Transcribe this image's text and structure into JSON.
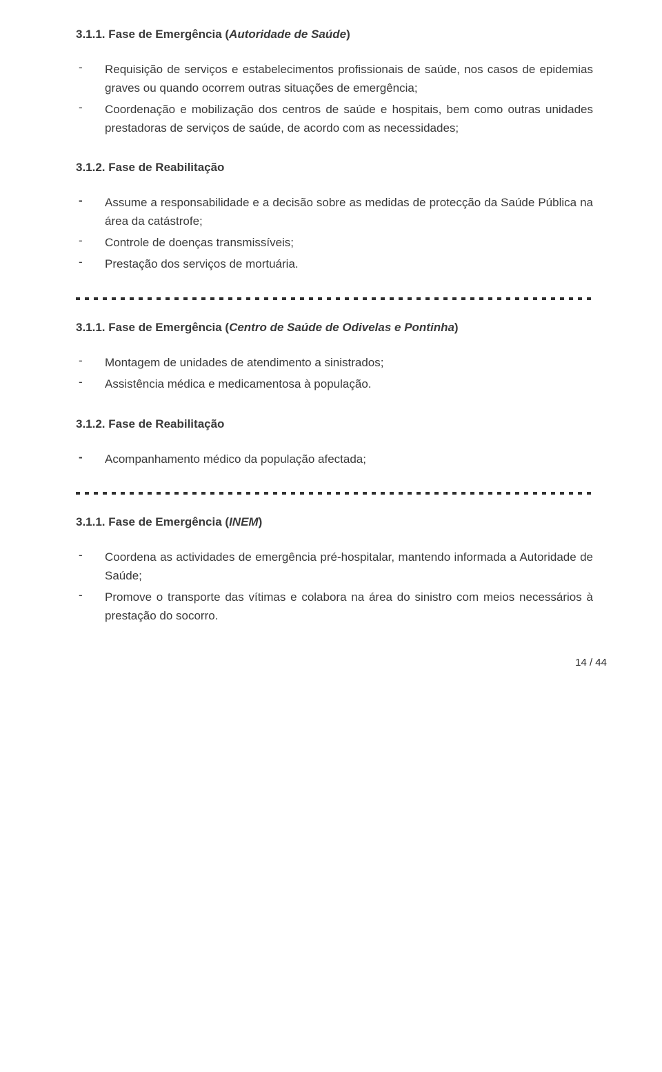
{
  "colors": {
    "text": "#3a3a3a",
    "page_bg": "#ffffff",
    "separator_dash": "#303030"
  },
  "typography": {
    "body_family": "Verdana",
    "body_size_pt": 12,
    "heading_weight": "bold",
    "line_height": 1.58
  },
  "section1": {
    "heading_prefix": "3.1.1. Fase de Emergência (",
    "heading_em": "Autoridade de Saúde",
    "heading_suffix": ")",
    "items": [
      "Requisição de serviços e estabelecimentos profissionais de saúde, nos casos de epidemias graves ou quando ocorrem outras situações de emergência;",
      "Coordenação e mobilização dos centros de saúde e hospitais, bem como outras unidades prestadoras de serviços de saúde, de acordo com as necessidades;"
    ]
  },
  "section2": {
    "heading": "3.1.2. Fase de Reabilitação",
    "items": [
      {
        "bold": true,
        "text": "Assume a responsabilidade e a decisão sobre as medidas de protecção da Saúde Pública na área da catástrofe;"
      },
      {
        "bold": false,
        "text": "Controle de doenças transmissíveis;"
      },
      {
        "bold": false,
        "text": "Prestação dos serviços de mortuária."
      }
    ]
  },
  "section3": {
    "heading_prefix": "3.1.1. Fase de Emergência (",
    "heading_em": "Centro de Saúde de Odivelas e Pontinha",
    "heading_suffix": ")",
    "items": [
      "Montagem de unidades de atendimento a sinistrados;",
      "Assistência médica e medicamentosa à população."
    ]
  },
  "section4": {
    "heading": "3.1.2. Fase de Reabilitação",
    "items": [
      {
        "bold": true,
        "text": "Acompanhamento médico da população afectada;"
      }
    ]
  },
  "section5": {
    "heading_prefix": "3.1.1. Fase de Emergência (",
    "heading_em": "INEM",
    "heading_suffix": ")",
    "items": [
      "Coordena as actividades de emergência pré-hospitalar, mantendo informada a Autoridade de Saúde;",
      "Promove o transporte das vítimas e colabora na área do sinistro com meios necessários à prestação do socorro."
    ]
  },
  "page_number": "14 / 44"
}
